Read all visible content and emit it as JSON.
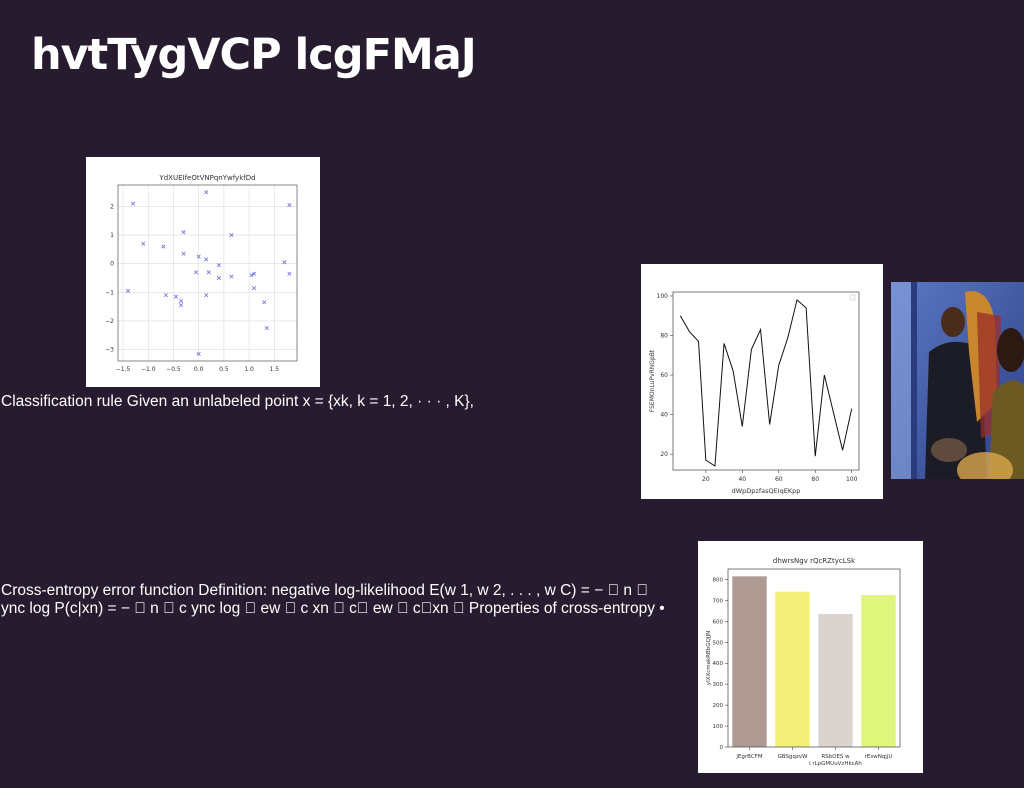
{
  "title": "hvtTygVCP lcgFMaJ",
  "paragraph_1": "Classification rule Given an unlabeled point x = {xk, k = 1, 2, · · · , K},",
  "paragraph_2": "Cross-entropy error function Definition: negative log-likelihood E(w 1, w 2, . . . , w C) = − \u0000 n \u0000 ync log P(c|xn) = − \u0000 n \u0000 c ync log \u0000 ew \u0000 c xn \u0000 c\u0000 ew \u0000 c\u0000xn \u0000 Properties of cross-entropy •",
  "chart_data": [
    {
      "type": "scatter",
      "title": "YdXUEIfeOtVNPqnYwfykfDd",
      "xlabel": "",
      "ylabel": "",
      "xlim": [
        -1.6,
        1.95
      ],
      "ylim": [
        -3.4,
        2.75
      ],
      "xticks": [
        "−1.5",
        "−1.0",
        "−0.5",
        "0.0",
        "0.5",
        "1.0",
        "1.5"
      ],
      "xtick_values": [
        -1.5,
        -1.0,
        -0.5,
        0.0,
        0.5,
        1.0,
        1.5
      ],
      "yticks": [
        "2",
        "1",
        "0",
        "−1",
        "−2",
        "−3"
      ],
      "ytick_values": [
        2,
        1,
        0,
        -1,
        -2,
        -3
      ],
      "grid": true,
      "marker": "x",
      "color": "#6f6fd8",
      "points": [
        [
          -1.3,
          2.1
        ],
        [
          -1.4,
          -0.95
        ],
        [
          -1.1,
          0.7
        ],
        [
          -0.7,
          0.6
        ],
        [
          -0.65,
          -1.1
        ],
        [
          -0.45,
          -1.15
        ],
        [
          -0.3,
          1.1
        ],
        [
          -0.3,
          0.35
        ],
        [
          -0.35,
          -1.3
        ],
        [
          -0.35,
          -1.45
        ],
        [
          -0.05,
          -0.3
        ],
        [
          0.0,
          0.25
        ],
        [
          0.0,
          -3.15
        ],
        [
          0.15,
          2.5
        ],
        [
          0.15,
          0.15
        ],
        [
          0.2,
          -0.3
        ],
        [
          0.15,
          -1.1
        ],
        [
          0.4,
          -0.05
        ],
        [
          0.4,
          -0.5
        ],
        [
          0.65,
          1.0
        ],
        [
          0.65,
          -0.45
        ],
        [
          1.05,
          -0.4
        ],
        [
          1.1,
          -0.35
        ],
        [
          1.1,
          -0.85
        ],
        [
          1.3,
          -1.35
        ],
        [
          1.35,
          -2.25
        ],
        [
          1.7,
          0.05
        ],
        [
          1.8,
          2.05
        ],
        [
          1.8,
          -0.35
        ]
      ]
    },
    {
      "type": "line",
      "title": "",
      "xlabel": "dWpDpzfasQEIqEKpp",
      "ylabel": "FSEMOnLuPvRNGpBt",
      "xlim": [
        2,
        104
      ],
      "ylim": [
        12,
        102
      ],
      "xticks": [
        "20",
        "40",
        "60",
        "80",
        "100"
      ],
      "xtick_values": [
        20,
        40,
        60,
        80,
        100
      ],
      "yticks": [
        "100",
        "80",
        "60",
        "40",
        "20"
      ],
      "ytick_values": [
        100,
        80,
        60,
        40,
        20
      ],
      "legend": "top-right",
      "color": "#111111",
      "x": [
        6,
        11,
        16,
        20,
        25,
        30,
        35,
        40,
        45,
        50,
        55,
        60,
        65,
        70,
        75,
        80,
        85,
        90,
        95,
        100
      ],
      "y": [
        90,
        82,
        77,
        17,
        14,
        76,
        62,
        34,
        73,
        83,
        35,
        65,
        79,
        98,
        94,
        19,
        60,
        41,
        22,
        43
      ]
    },
    {
      "type": "bar",
      "title": "dhwrsNgv rQcRZtycLSk",
      "xlabel": "",
      "ylabel": "yIXXcmakRBbGQJJN",
      "ylim": [
        0,
        850
      ],
      "yticks": [
        "800",
        "700",
        "600",
        "500",
        "400",
        "300",
        "200",
        "100",
        "0"
      ],
      "ytick_values": [
        800,
        700,
        600,
        500,
        400,
        300,
        200,
        100,
        0
      ],
      "categories": [
        "jEgrBCFM",
        "GBSgqzvW",
        "RSbOES w\ni rLpGMUuVzHkcAh",
        "rEswNqjjU"
      ],
      "values": [
        815,
        742,
        635,
        725
      ],
      "colors": [
        "#ae9a93",
        "#f2ef7a",
        "#dbd3d0",
        "#dff57c"
      ]
    }
  ],
  "photo": {
    "description_colors": [
      "#3a5ea8",
      "#c98a3a",
      "#1a1a2a"
    ]
  }
}
